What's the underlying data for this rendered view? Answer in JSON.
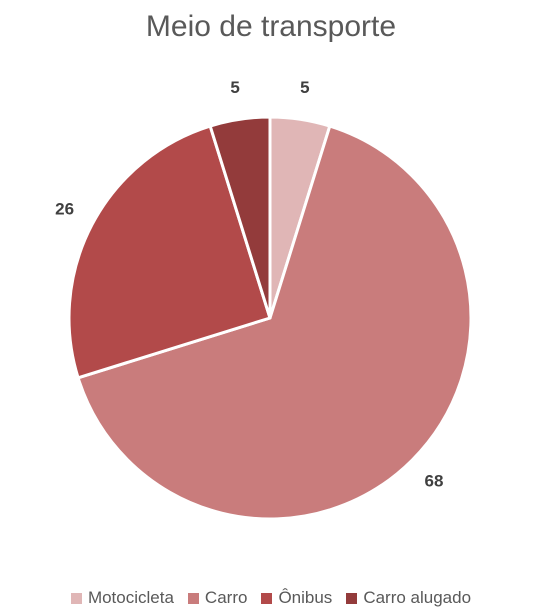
{
  "chart_data": {
    "type": "pie",
    "title": "Meio de transporte",
    "categories": [
      "Motocicleta",
      "Carro",
      "Ônibus",
      "Carro alugado"
    ],
    "values": [
      5,
      68,
      26,
      5
    ],
    "colors": [
      "#e0b6b6",
      "#c97c7c",
      "#b24a4a",
      "#933b3b"
    ],
    "data_labels": [
      "5",
      "68",
      "26",
      "5"
    ],
    "legend_position": "bottom",
    "start_angle_deg": 0,
    "direction": "clockwise"
  }
}
